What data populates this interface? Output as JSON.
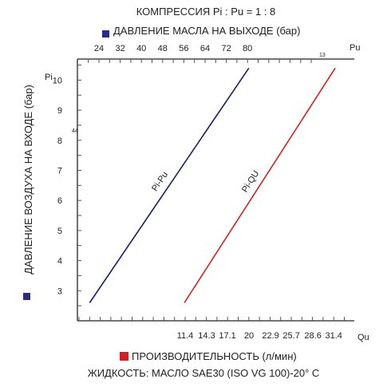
{
  "chart_data": {
    "type": "line",
    "title": "КОМПРЕССИЯ Pi : Pu = 1 : 8",
    "top_axis_label": "ДАВЛЕНИЕ МАСЛА НА ВЫХОДЕ (бар)",
    "top_axis_symbol": "Pu",
    "top_axis_ticks": [
      "24",
      "32",
      "40",
      "48",
      "56",
      "64",
      "72",
      "80"
    ],
    "top_axis_small_mark": "13",
    "y_axis_label": "ДАВЛЕНИЕ ВОЗДУХА НА ВХОДЕ (бар)",
    "y_axis_symbol": "Pi",
    "y_ticks": [
      "3",
      "4",
      "5",
      "6",
      "7",
      "8",
      "9",
      "10"
    ],
    "y_small_mark": "44",
    "ylim": [
      2.0,
      10.7
    ],
    "bottom_axis_symbol": "Qu",
    "bottom_axis_ticks": [
      "11.4",
      "14.3",
      "17.1",
      "20",
      "22.9",
      "25.7",
      "28.6",
      "31.4"
    ],
    "bottom_axis_label": "ПРОИЗВОДИТЕЛЬНОСТЬ (л/мин)",
    "fluid_note": "ЖИДКОСТЬ:  МАСЛО SAE30 (ISO VG 100)-20° C",
    "colors": {
      "pressure": "#1a1a6e",
      "flow": "#d42020",
      "axis": "#222222",
      "grid": "#555555"
    },
    "series": [
      {
        "name": "Pi-Pu",
        "axis": "top",
        "color": "#1a1a6e",
        "points": [
          {
            "x": 20.5,
            "y": 2.6
          },
          {
            "x": 80.5,
            "y": 10.4
          }
        ]
      },
      {
        "name": "Pi-QU",
        "axis": "bottom",
        "color": "#d42020",
        "points": [
          {
            "x": 11.3,
            "y": 2.6
          },
          {
            "x": 31.6,
            "y": 10.4
          }
        ]
      }
    ]
  }
}
